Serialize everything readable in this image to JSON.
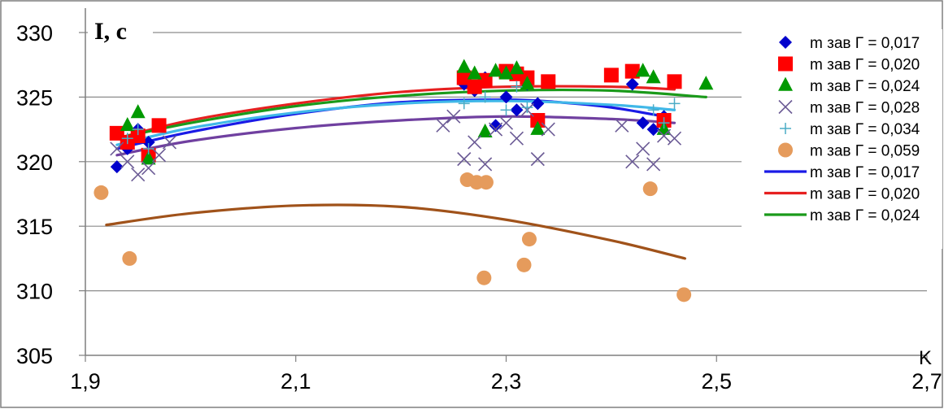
{
  "chart_data": {
    "type": "scatter",
    "title": "",
    "xlabel": "K",
    "ylabel": "I, c",
    "xlim": [
      1.9,
      2.7
    ],
    "ylim": [
      305,
      330
    ],
    "x_ticks": [
      "1,9",
      "2,1",
      "2,3",
      "2,5",
      "2,7"
    ],
    "y_ticks": [
      "305",
      "310",
      "315",
      "320",
      "325",
      "330"
    ],
    "grid": "horizontal",
    "legend_position": "right",
    "series": [
      {
        "name": "m зав Г = 0,017",
        "kind": "points",
        "marker": "diamond",
        "color": "#0000CC",
        "points": [
          [
            1.93,
            319.6
          ],
          [
            1.94,
            321.0
          ],
          [
            1.95,
            322.5
          ],
          [
            1.96,
            321.5
          ],
          [
            2.26,
            326.0
          ],
          [
            2.27,
            325.5
          ],
          [
            2.28,
            326.5
          ],
          [
            2.29,
            322.8
          ],
          [
            2.3,
            325.0
          ],
          [
            2.31,
            324.0
          ],
          [
            2.32,
            326.0
          ],
          [
            2.33,
            324.5
          ],
          [
            2.42,
            326.0
          ],
          [
            2.43,
            323.0
          ],
          [
            2.44,
            322.5
          ],
          [
            2.45,
            323.5
          ]
        ]
      },
      {
        "name": "m зав Г = 0,020",
        "kind": "points",
        "marker": "square",
        "color": "#FF0000",
        "points": [
          [
            1.93,
            322.2
          ],
          [
            1.94,
            321.5
          ],
          [
            1.95,
            322.0
          ],
          [
            1.96,
            320.5
          ],
          [
            1.97,
            322.8
          ],
          [
            2.26,
            326.5
          ],
          [
            2.27,
            325.8
          ],
          [
            2.28,
            326.3
          ],
          [
            2.3,
            327.0
          ],
          [
            2.31,
            326.8
          ],
          [
            2.32,
            326.5
          ],
          [
            2.33,
            323.2
          ],
          [
            2.34,
            326.2
          ],
          [
            2.4,
            326.7
          ],
          [
            2.42,
            327.0
          ],
          [
            2.45,
            323.2
          ],
          [
            2.46,
            326.2
          ]
        ]
      },
      {
        "name": "m зав Г = 0,024",
        "kind": "points",
        "marker": "triangle",
        "color": "#009900",
        "points": [
          [
            1.94,
            322.8
          ],
          [
            1.95,
            323.8
          ],
          [
            1.96,
            320.2
          ],
          [
            2.26,
            327.3
          ],
          [
            2.27,
            326.8
          ],
          [
            2.28,
            322.3
          ],
          [
            2.29,
            327.0
          ],
          [
            2.3,
            326.8
          ],
          [
            2.31,
            327.2
          ],
          [
            2.32,
            326.0
          ],
          [
            2.33,
            322.5
          ],
          [
            2.43,
            327.0
          ],
          [
            2.44,
            326.5
          ],
          [
            2.45,
            322.5
          ],
          [
            2.49,
            326.0
          ]
        ]
      },
      {
        "name": "m зав Г = 0,028",
        "kind": "points",
        "marker": "x",
        "color": "#6B5B95",
        "points": [
          [
            1.93,
            321.0
          ],
          [
            1.94,
            320.0
          ],
          [
            1.95,
            319.0
          ],
          [
            1.96,
            319.5
          ],
          [
            1.97,
            320.5
          ],
          [
            1.98,
            321.5
          ],
          [
            2.24,
            322.8
          ],
          [
            2.25,
            323.5
          ],
          [
            2.26,
            320.2
          ],
          [
            2.27,
            321.5
          ],
          [
            2.28,
            319.8
          ],
          [
            2.29,
            322.5
          ],
          [
            2.3,
            323.0
          ],
          [
            2.31,
            321.8
          ],
          [
            2.32,
            324.0
          ],
          [
            2.33,
            320.2
          ],
          [
            2.34,
            322.5
          ],
          [
            2.41,
            322.8
          ],
          [
            2.42,
            320.0
          ],
          [
            2.43,
            321.0
          ],
          [
            2.44,
            319.8
          ],
          [
            2.45,
            322.0
          ],
          [
            2.46,
            321.8
          ]
        ]
      },
      {
        "name": "m зав Г = 0,034",
        "kind": "points",
        "marker": "plus",
        "color": "#4BACC6",
        "points": [
          [
            1.94,
            321.8
          ],
          [
            1.95,
            322.5
          ],
          [
            1.96,
            321.0
          ],
          [
            2.26,
            324.5
          ],
          [
            2.28,
            325.0
          ],
          [
            2.3,
            324.0
          ],
          [
            2.31,
            325.8
          ],
          [
            2.32,
            324.2
          ],
          [
            2.44,
            324.0
          ],
          [
            2.45,
            323.0
          ],
          [
            2.46,
            324.5
          ]
        ]
      },
      {
        "name": "m зав Г = 0,059",
        "kind": "points",
        "marker": "circle",
        "color": "#E59B5C",
        "points": [
          [
            1.915,
            317.6
          ],
          [
            1.942,
            312.5
          ],
          [
            2.263,
            318.6
          ],
          [
            2.272,
            318.4
          ],
          [
            2.279,
            311.0
          ],
          [
            2.281,
            318.4
          ],
          [
            2.317,
            312.0
          ],
          [
            2.322,
            314.0
          ],
          [
            2.437,
            317.9
          ],
          [
            2.469,
            309.7
          ]
        ]
      },
      {
        "name": "m зав Г = 0,017",
        "kind": "curve",
        "color": "#1A1AE6",
        "points": [
          [
            1.93,
            321.0
          ],
          [
            2.0,
            322.3
          ],
          [
            2.1,
            323.7
          ],
          [
            2.2,
            324.6
          ],
          [
            2.3,
            324.8
          ],
          [
            2.35,
            324.6
          ],
          [
            2.4,
            324.2
          ],
          [
            2.45,
            323.5
          ]
        ]
      },
      {
        "name": "m зав Г = 0,020",
        "kind": "curve",
        "color": "#E62020",
        "points": [
          [
            1.93,
            321.8
          ],
          [
            2.0,
            323.2
          ],
          [
            2.1,
            324.5
          ],
          [
            2.2,
            325.4
          ],
          [
            2.3,
            325.8
          ],
          [
            2.4,
            325.8
          ],
          [
            2.46,
            325.6
          ]
        ]
      },
      {
        "name": "m зав Г = 0,024",
        "kind": "curve",
        "color": "#1A9A1A",
        "points": [
          [
            1.93,
            321.8
          ],
          [
            2.0,
            323.0
          ],
          [
            2.1,
            324.3
          ],
          [
            2.2,
            325.1
          ],
          [
            2.3,
            325.5
          ],
          [
            2.4,
            325.5
          ],
          [
            2.49,
            325.0
          ]
        ]
      },
      {
        "kind": "curve",
        "color": "#40B8E8",
        "points": [
          [
            1.93,
            321.3
          ],
          [
            2.0,
            322.6
          ],
          [
            2.1,
            323.8
          ],
          [
            2.2,
            324.5
          ],
          [
            2.3,
            324.7
          ],
          [
            2.4,
            324.4
          ],
          [
            2.46,
            324.0
          ]
        ]
      },
      {
        "kind": "curve",
        "color": "#7040A0",
        "points": [
          [
            1.93,
            320.5
          ],
          [
            2.0,
            321.6
          ],
          [
            2.1,
            322.6
          ],
          [
            2.2,
            323.2
          ],
          [
            2.3,
            323.5
          ],
          [
            2.4,
            323.3
          ],
          [
            2.46,
            323.0
          ]
        ]
      },
      {
        "kind": "curve",
        "color": "#A0521A",
        "points": [
          [
            1.92,
            315.1
          ],
          [
            2.0,
            316.0
          ],
          [
            2.1,
            316.6
          ],
          [
            2.2,
            316.5
          ],
          [
            2.3,
            315.5
          ],
          [
            2.4,
            313.9
          ],
          [
            2.47,
            312.5
          ]
        ]
      }
    ]
  }
}
